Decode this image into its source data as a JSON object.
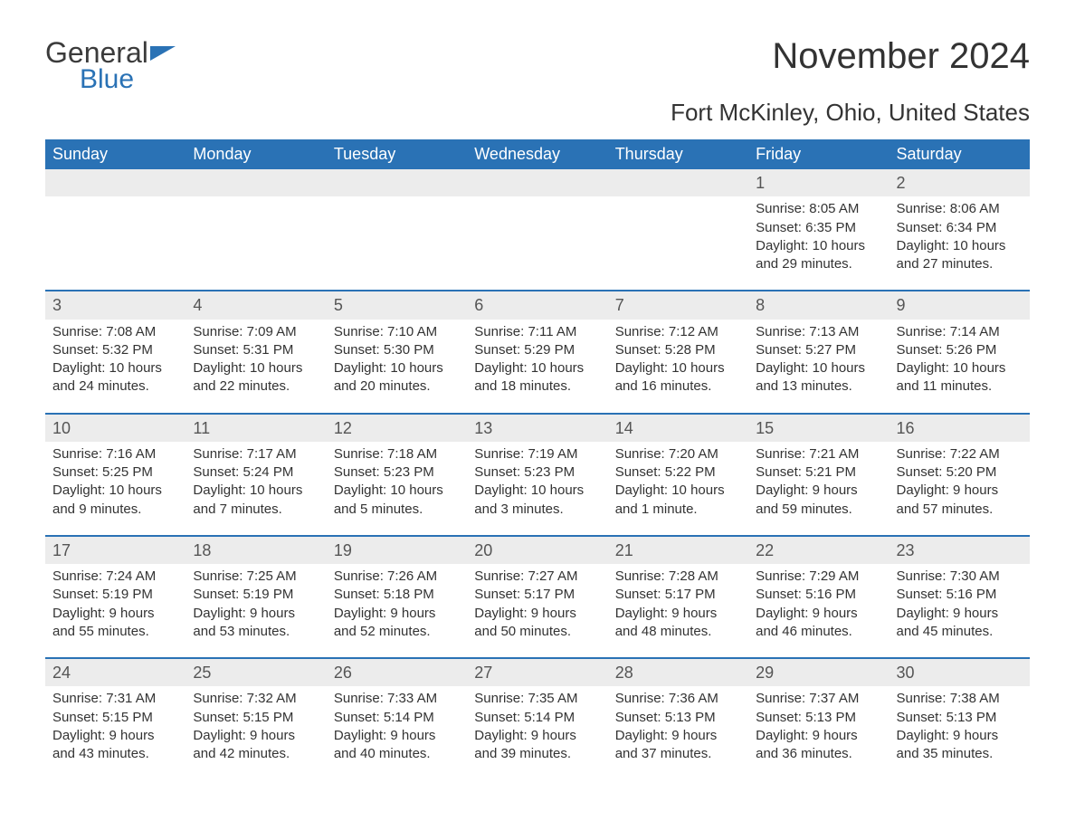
{
  "brand": {
    "part1": "General",
    "part2": "Blue",
    "text_color": "#3b3b3b",
    "accent_color": "#2a72b5"
  },
  "title": "November 2024",
  "location": "Fort McKinley, Ohio, United States",
  "header_bg": "#2a72b5",
  "header_text": "#ffffff",
  "daynum_bg": "#ececec",
  "body_text": "#333333",
  "columns": [
    "Sunday",
    "Monday",
    "Tuesday",
    "Wednesday",
    "Thursday",
    "Friday",
    "Saturday"
  ],
  "weeks": [
    {
      "days": [
        null,
        null,
        null,
        null,
        null,
        {
          "n": "1",
          "sunrise": "8:05 AM",
          "sunset": "6:35 PM",
          "daylight": "10 hours and 29 minutes."
        },
        {
          "n": "2",
          "sunrise": "8:06 AM",
          "sunset": "6:34 PM",
          "daylight": "10 hours and 27 minutes."
        }
      ]
    },
    {
      "days": [
        {
          "n": "3",
          "sunrise": "7:08 AM",
          "sunset": "5:32 PM",
          "daylight": "10 hours and 24 minutes."
        },
        {
          "n": "4",
          "sunrise": "7:09 AM",
          "sunset": "5:31 PM",
          "daylight": "10 hours and 22 minutes."
        },
        {
          "n": "5",
          "sunrise": "7:10 AM",
          "sunset": "5:30 PM",
          "daylight": "10 hours and 20 minutes."
        },
        {
          "n": "6",
          "sunrise": "7:11 AM",
          "sunset": "5:29 PM",
          "daylight": "10 hours and 18 minutes."
        },
        {
          "n": "7",
          "sunrise": "7:12 AM",
          "sunset": "5:28 PM",
          "daylight": "10 hours and 16 minutes."
        },
        {
          "n": "8",
          "sunrise": "7:13 AM",
          "sunset": "5:27 PM",
          "daylight": "10 hours and 13 minutes."
        },
        {
          "n": "9",
          "sunrise": "7:14 AM",
          "sunset": "5:26 PM",
          "daylight": "10 hours and 11 minutes."
        }
      ]
    },
    {
      "days": [
        {
          "n": "10",
          "sunrise": "7:16 AM",
          "sunset": "5:25 PM",
          "daylight": "10 hours and 9 minutes."
        },
        {
          "n": "11",
          "sunrise": "7:17 AM",
          "sunset": "5:24 PM",
          "daylight": "10 hours and 7 minutes."
        },
        {
          "n": "12",
          "sunrise": "7:18 AM",
          "sunset": "5:23 PM",
          "daylight": "10 hours and 5 minutes."
        },
        {
          "n": "13",
          "sunrise": "7:19 AM",
          "sunset": "5:23 PM",
          "daylight": "10 hours and 3 minutes."
        },
        {
          "n": "14",
          "sunrise": "7:20 AM",
          "sunset": "5:22 PM",
          "daylight": "10 hours and 1 minute."
        },
        {
          "n": "15",
          "sunrise": "7:21 AM",
          "sunset": "5:21 PM",
          "daylight": "9 hours and 59 minutes."
        },
        {
          "n": "16",
          "sunrise": "7:22 AM",
          "sunset": "5:20 PM",
          "daylight": "9 hours and 57 minutes."
        }
      ]
    },
    {
      "days": [
        {
          "n": "17",
          "sunrise": "7:24 AM",
          "sunset": "5:19 PM",
          "daylight": "9 hours and 55 minutes."
        },
        {
          "n": "18",
          "sunrise": "7:25 AM",
          "sunset": "5:19 PM",
          "daylight": "9 hours and 53 minutes."
        },
        {
          "n": "19",
          "sunrise": "7:26 AM",
          "sunset": "5:18 PM",
          "daylight": "9 hours and 52 minutes."
        },
        {
          "n": "20",
          "sunrise": "7:27 AM",
          "sunset": "5:17 PM",
          "daylight": "9 hours and 50 minutes."
        },
        {
          "n": "21",
          "sunrise": "7:28 AM",
          "sunset": "5:17 PM",
          "daylight": "9 hours and 48 minutes."
        },
        {
          "n": "22",
          "sunrise": "7:29 AM",
          "sunset": "5:16 PM",
          "daylight": "9 hours and 46 minutes."
        },
        {
          "n": "23",
          "sunrise": "7:30 AM",
          "sunset": "5:16 PM",
          "daylight": "9 hours and 45 minutes."
        }
      ]
    },
    {
      "days": [
        {
          "n": "24",
          "sunrise": "7:31 AM",
          "sunset": "5:15 PM",
          "daylight": "9 hours and 43 minutes."
        },
        {
          "n": "25",
          "sunrise": "7:32 AM",
          "sunset": "5:15 PM",
          "daylight": "9 hours and 42 minutes."
        },
        {
          "n": "26",
          "sunrise": "7:33 AM",
          "sunset": "5:14 PM",
          "daylight": "9 hours and 40 minutes."
        },
        {
          "n": "27",
          "sunrise": "7:35 AM",
          "sunset": "5:14 PM",
          "daylight": "9 hours and 39 minutes."
        },
        {
          "n": "28",
          "sunrise": "7:36 AM",
          "sunset": "5:13 PM",
          "daylight": "9 hours and 37 minutes."
        },
        {
          "n": "29",
          "sunrise": "7:37 AM",
          "sunset": "5:13 PM",
          "daylight": "9 hours and 36 minutes."
        },
        {
          "n": "30",
          "sunrise": "7:38 AM",
          "sunset": "5:13 PM",
          "daylight": "9 hours and 35 minutes."
        }
      ]
    }
  ],
  "labels": {
    "sunrise": "Sunrise: ",
    "sunset": "Sunset: ",
    "daylight": "Daylight: "
  }
}
